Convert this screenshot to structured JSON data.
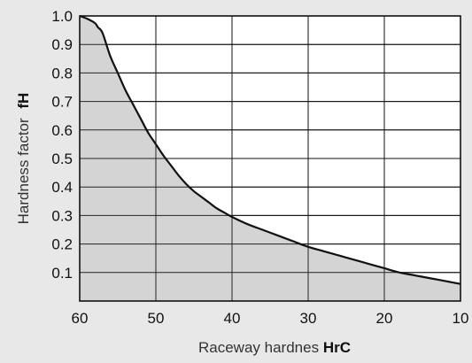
{
  "chart_data": {
    "type": "area",
    "xlabel": "Raceway hardnes",
    "xlabel_unit": "HrC",
    "ylabel": "Hardness factor",
    "ylabel_symbol": "fH",
    "x_ticks": [
      "60",
      "50",
      "40",
      "30",
      "20",
      "10"
    ],
    "y_ticks": [
      "1.0",
      "0.9",
      "0.8",
      "0.7",
      "0.6",
      "0.5",
      "0.4",
      "0.3",
      "0.2",
      "0.1"
    ],
    "xlim": [
      60,
      10
    ],
    "ylim": [
      0,
      1.0
    ],
    "x_reversed": true,
    "grid": true,
    "series": [
      {
        "x": [
          60,
          59,
          58,
          57.6,
          57,
          56,
          55,
          54,
          53,
          52,
          51,
          50,
          49,
          48,
          47,
          46,
          45,
          44,
          43,
          42,
          41,
          40,
          38,
          36,
          34,
          32,
          30,
          28,
          26,
          24,
          22,
          20,
          18,
          16,
          14,
          12,
          10
        ],
        "y": [
          1.0,
          0.99,
          0.975,
          0.96,
          0.94,
          0.86,
          0.8,
          0.74,
          0.69,
          0.64,
          0.59,
          0.55,
          0.51,
          0.475,
          0.44,
          0.41,
          0.385,
          0.365,
          0.345,
          0.325,
          0.31,
          0.295,
          0.27,
          0.25,
          0.23,
          0.21,
          0.19,
          0.175,
          0.16,
          0.145,
          0.13,
          0.115,
          0.1,
          0.09,
          0.08,
          0.07,
          0.06
        ]
      }
    ],
    "colors": {
      "background": "#e8e8e8",
      "plot_area": "#ffffff",
      "fill": "#d4d4d4",
      "line": "#111111",
      "grid": "#111111"
    }
  }
}
